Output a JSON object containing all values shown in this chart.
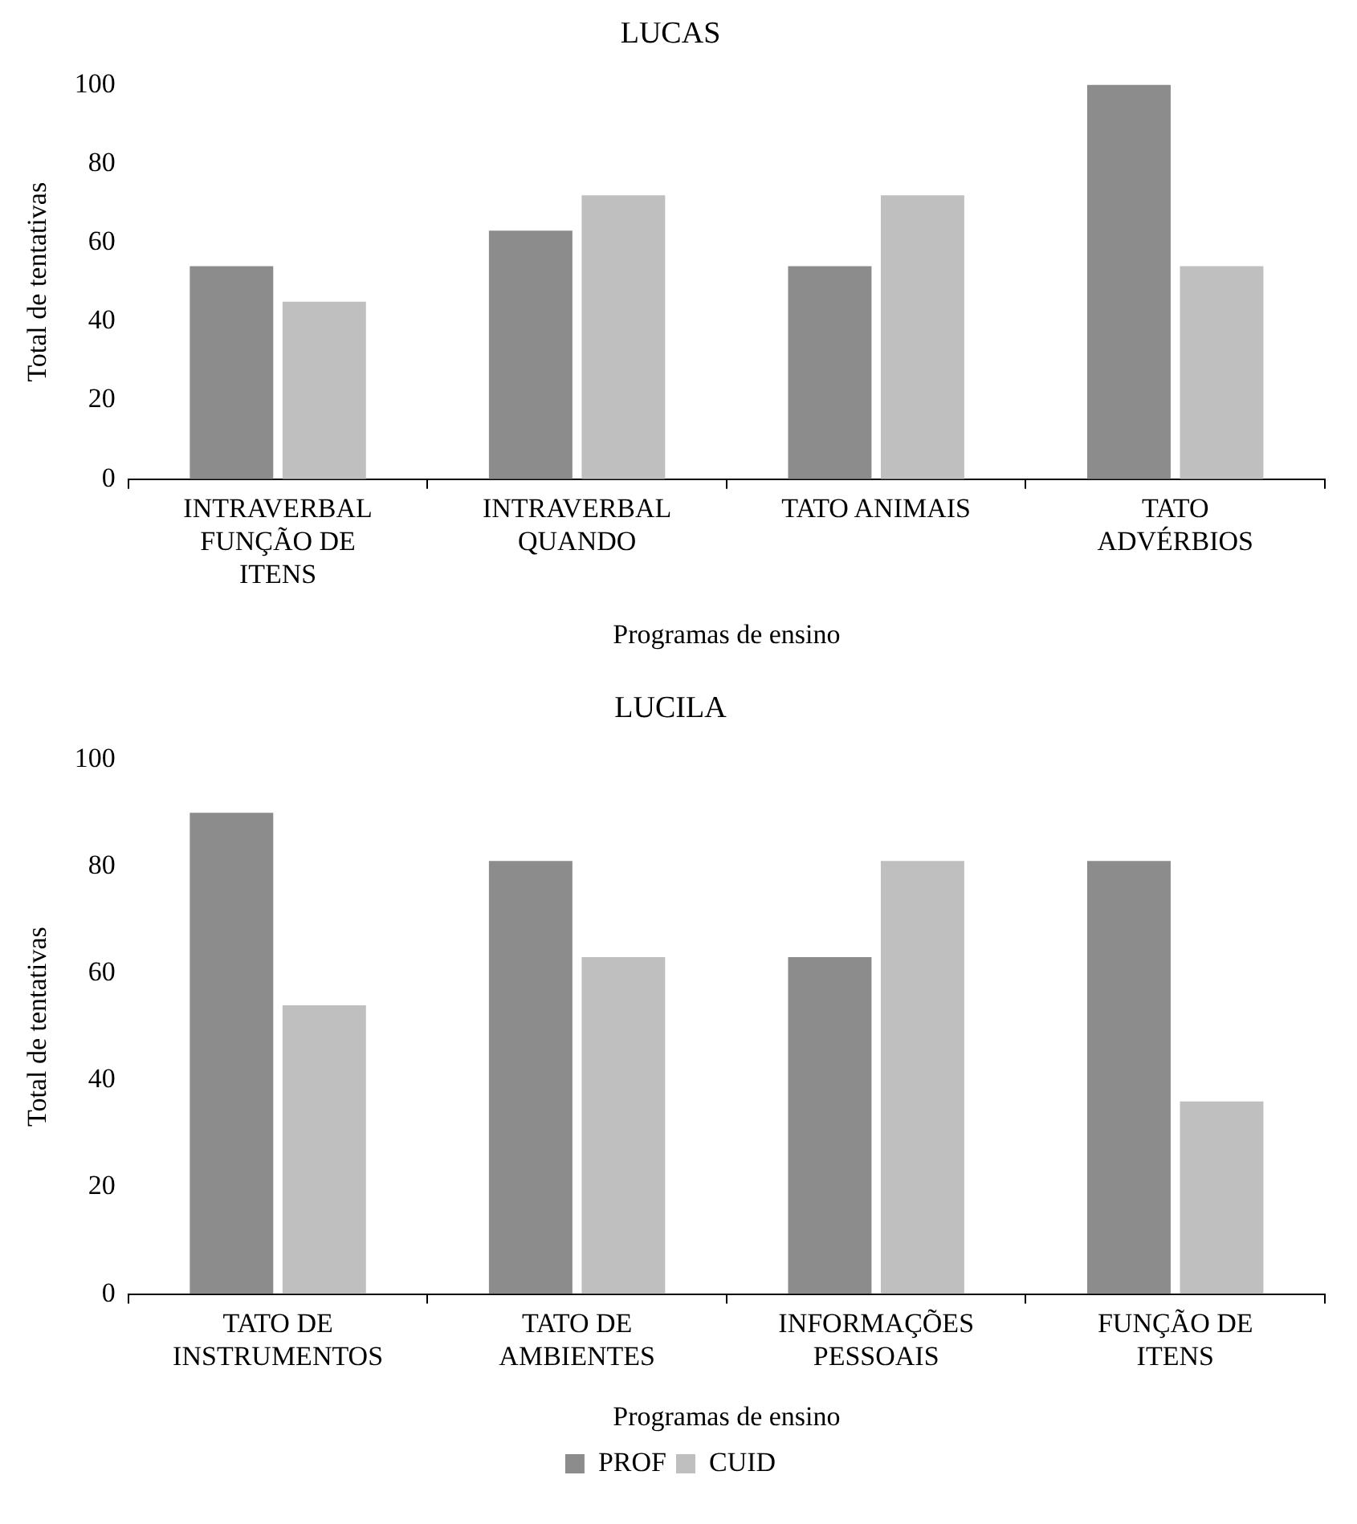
{
  "chart_data": [
    {
      "type": "bar",
      "title": "LUCAS",
      "xlabel": "Programas de ensino",
      "ylabel": "Total de tentativas",
      "categories": [
        "INTRAVERBAL FUNÇÃO DE ITENS",
        "INTRAVERBAL QUANDO",
        "TATO ANIMAIS",
        "TATO ADVÉRBIOS"
      ],
      "series": [
        {
          "color": "#8c8c8c",
          "values": [
            54,
            63,
            54,
            100
          ]
        },
        {
          "color": "#bfbfbf",
          "values": [
            45,
            72,
            72,
            54
          ]
        }
      ],
      "ylim": [
        0,
        100
      ],
      "yticks": [
        0,
        20,
        40,
        60,
        80,
        100
      ],
      "grid": false,
      "legend": false
    },
    {
      "type": "bar",
      "title": "LUCILA",
      "xlabel": "Programas de ensino",
      "ylabel": "Total de tentativas",
      "categories": [
        "TATO DE INSTRUMENTOS",
        "TATO DE AMBIENTES",
        "INFORMAÇÕES PESSOAIS",
        "FUNÇÃO DE ITENS"
      ],
      "series": [
        {
          "name": "PROF",
          "color": "#8c8c8c",
          "values": [
            90,
            81,
            63,
            81
          ]
        },
        {
          "name": "CUID",
          "color": "#bfbfbf",
          "values": [
            54,
            63,
            81,
            36
          ]
        }
      ],
      "ylim": [
        0,
        100
      ],
      "yticks": [
        0,
        20,
        40,
        60,
        80,
        100
      ],
      "grid": false,
      "legend": "bottom"
    }
  ]
}
